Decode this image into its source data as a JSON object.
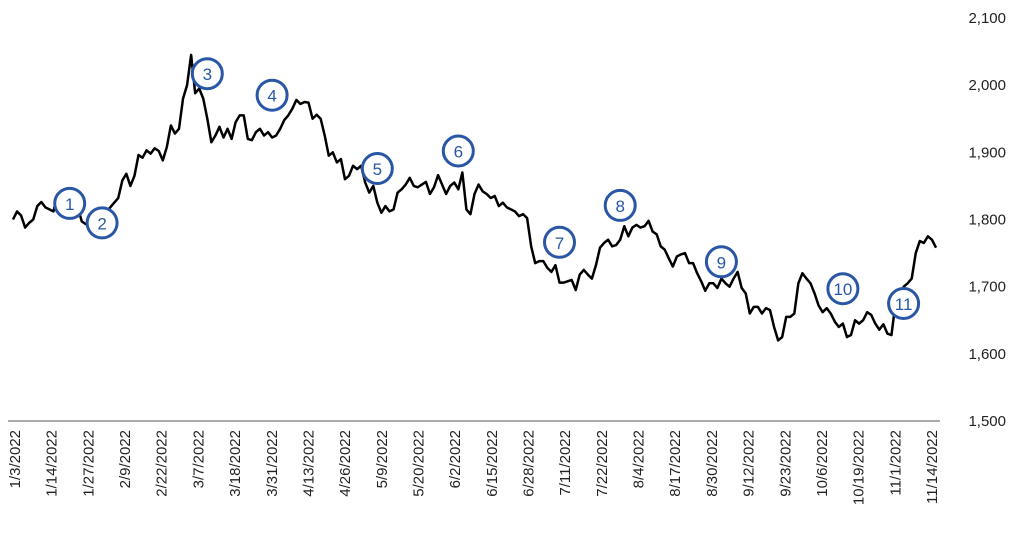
{
  "colors": {
    "line": "#000000",
    "marker": "#2a57a5",
    "axis": "#555555"
  },
  "chart_data": {
    "type": "line",
    "title": "",
    "xlabel": "",
    "ylabel": "",
    "ylim": [
      1500,
      2100
    ],
    "yticks": [
      "1,500",
      "1,600",
      "1,700",
      "1,800",
      "1,900",
      "2,000",
      "2,100"
    ],
    "ytick_values": [
      1500,
      1600,
      1700,
      1800,
      1900,
      2000,
      2100
    ],
    "grid": false,
    "legend": "none",
    "xtick_labels": [
      "1/3/2022",
      "1/14/2022",
      "1/27/2022",
      "2/9/2022",
      "2/22/2022",
      "3/7/2022",
      "3/18/2022",
      "3/31/2022",
      "4/13/2022",
      "4/26/2022",
      "5/9/2022",
      "5/20/2022",
      "6/2/2022",
      "6/15/2022",
      "6/28/2022",
      "7/11/2022",
      "7/22/2022",
      "8/4/2022",
      "8/17/2022",
      "8/30/2022",
      "9/12/2022",
      "9/23/2022",
      "10/6/2022",
      "10/19/2022",
      "11/1/2022",
      "11/14/2022"
    ],
    "series": [
      {
        "values": [
          1800,
          1812,
          1806,
          1788,
          1795,
          1800,
          1820,
          1826,
          1818,
          1815,
          1812,
          1838,
          1834,
          1830,
          1840,
          1845,
          1818,
          1797,
          1793,
          1797,
          1800,
          1804,
          1802,
          1808,
          1818,
          1825,
          1832,
          1858,
          1868,
          1850,
          1865,
          1896,
          1892,
          1903,
          1898,
          1906,
          1902,
          1888,
          1908,
          1940,
          1928,
          1935,
          1980,
          2000,
          2045,
          1988,
          1995,
          1980,
          1950,
          1915,
          1925,
          1938,
          1922,
          1935,
          1920,
          1945,
          1955,
          1955,
          1920,
          1918,
          1930,
          1935,
          1925,
          1930,
          1922,
          1925,
          1935,
          1948,
          1955,
          1965,
          1978,
          1972,
          1975,
          1974,
          1950,
          1956,
          1950,
          1925,
          1895,
          1900,
          1885,
          1890,
          1860,
          1865,
          1880,
          1875,
          1880,
          1855,
          1840,
          1850,
          1825,
          1810,
          1820,
          1812,
          1815,
          1840,
          1845,
          1852,
          1862,
          1850,
          1848,
          1852,
          1856,
          1838,
          1848,
          1866,
          1852,
          1838,
          1850,
          1855,
          1845,
          1870,
          1815,
          1808,
          1838,
          1852,
          1842,
          1838,
          1832,
          1835,
          1820,
          1825,
          1818,
          1815,
          1812,
          1805,
          1808,
          1802,
          1760,
          1735,
          1738,
          1738,
          1728,
          1722,
          1732,
          1706,
          1706,
          1708,
          1710,
          1695,
          1718,
          1725,
          1718,
          1712,
          1732,
          1758,
          1765,
          1770,
          1760,
          1762,
          1770,
          1790,
          1775,
          1788,
          1792,
          1788,
          1790,
          1798,
          1782,
          1778,
          1760,
          1755,
          1742,
          1730,
          1745,
          1748,
          1750,
          1735,
          1735,
          1720,
          1708,
          1694,
          1705,
          1705,
          1698,
          1712,
          1705,
          1700,
          1712,
          1722,
          1698,
          1690,
          1660,
          1670,
          1670,
          1660,
          1668,
          1665,
          1640,
          1620,
          1625,
          1655,
          1655,
          1660,
          1705,
          1720,
          1712,
          1705,
          1690,
          1672,
          1662,
          1668,
          1660,
          1648,
          1640,
          1645,
          1625,
          1628,
          1650,
          1645,
          1650,
          1662,
          1658,
          1645,
          1636,
          1644,
          1630,
          1628,
          1676,
          1672,
          1700,
          1705,
          1712,
          1750,
          1768,
          1765,
          1775,
          1770,
          1758
        ]
      }
    ],
    "annotations": [
      {
        "label": "1",
        "index": 14,
        "value": 1824
      },
      {
        "label": "2",
        "index": 22,
        "value": 1795
      },
      {
        "label": "3",
        "index": 48,
        "value": 2017
      },
      {
        "label": "4",
        "index": 64,
        "value": 1985
      },
      {
        "label": "5",
        "index": 90,
        "value": 1876
      },
      {
        "label": "6",
        "index": 110,
        "value": 1902
      },
      {
        "label": "7",
        "index": 135,
        "value": 1766
      },
      {
        "label": "8",
        "index": 150,
        "value": 1821
      },
      {
        "label": "9",
        "index": 175,
        "value": 1737
      },
      {
        "label": "10",
        "index": 205,
        "value": 1697
      },
      {
        "label": "11",
        "index": 220,
        "value": 1675
      }
    ]
  }
}
